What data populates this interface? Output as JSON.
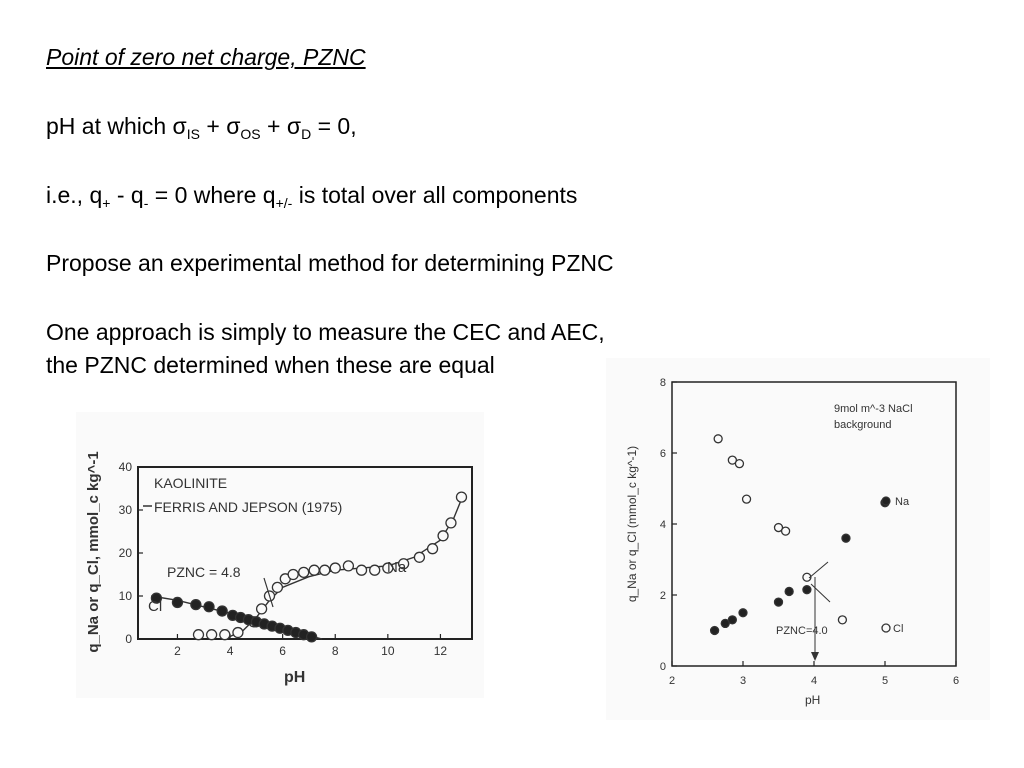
{
  "slide": {
    "title": "Point of zero net charge, PZNC",
    "line1": {
      "pre": "pH at which σ",
      "s1": "IS",
      "m1": " + σ",
      "s2": "OS",
      "m2": " + σ",
      "s3": "D",
      "post": " = 0,"
    },
    "line2": {
      "pre": "i.e., q",
      "s1": "+",
      "m1": " - q",
      "s2": "-",
      "m2": " = 0 where q",
      "s3": "+/-",
      "post": " is total over all components"
    },
    "line3": "Propose an experimental method for determining PZNC",
    "line4": "One approach is simply to measure the CEC and AEC,",
    "line5": "the PZNC determined when these are equal"
  },
  "chart_data": [
    {
      "type": "scatter",
      "title": "KAOLINITE",
      "subtitle": "FERRIS AND JEPSON (1975)",
      "xlabel": "pH",
      "ylabel": "q_Na or q_Cl, mmol_c kg^-1",
      "xlim": [
        0.5,
        13.2
      ],
      "ylim": [
        0,
        40
      ],
      "xticks": [
        "2",
        "4",
        "6",
        "8",
        "10",
        "12"
      ],
      "yticks": [
        "0",
        "10",
        "20",
        "30",
        "40"
      ],
      "annotation": "PZNC = 4.8",
      "series": [
        {
          "name": "Na",
          "marker": "open-circle",
          "x": [
            2.8,
            3.3,
            3.8,
            4.3,
            4.9,
            5.2,
            5.5,
            5.8,
            6.1,
            6.4,
            6.8,
            7.2,
            7.6,
            8.0,
            8.5,
            9.0,
            9.5,
            10.0,
            10.6,
            11.2,
            11.7,
            12.1,
            12.4,
            12.8
          ],
          "y": [
            1,
            1,
            1,
            1.5,
            4,
            7,
            10,
            12,
            14,
            15,
            15.5,
            16,
            16,
            16.5,
            17,
            16,
            16,
            16.5,
            17.5,
            19,
            21,
            24,
            27,
            33
          ]
        },
        {
          "name": "Cl",
          "marker": "filled-circle",
          "x": [
            1.2,
            2.0,
            2.7,
            3.2,
            3.7,
            4.1,
            4.4,
            4.7,
            5.0,
            5.3,
            5.6,
            5.9,
            6.2,
            6.5,
            6.8,
            7.1
          ],
          "y": [
            9.5,
            8.5,
            8,
            7.5,
            6.5,
            5.5,
            5,
            4.5,
            4,
            3.5,
            3,
            2.5,
            2,
            1.5,
            1,
            0.5
          ]
        }
      ],
      "curves": [
        {
          "x": [
            1,
            2,
            3,
            4,
            5,
            6,
            7,
            7.5
          ],
          "y": [
            10,
            9,
            7.5,
            6,
            4.5,
            2.5,
            0.8,
            0
          ]
        },
        {
          "x": [
            3.8,
            4.5,
            5,
            5.5,
            6,
            7,
            8,
            9,
            10,
            11,
            12,
            12.5,
            12.9
          ],
          "y": [
            0,
            2,
            5,
            9,
            12,
            14.5,
            16,
            16.5,
            17,
            19,
            23,
            28,
            34
          ]
        }
      ]
    },
    {
      "type": "scatter",
      "title": "9mol m^-3 NaCl",
      "subtitle": "background",
      "xlabel": "pH",
      "ylabel": "q_Na or q_Cl (mmol_c kg^-1)",
      "xlim": [
        2,
        6
      ],
      "ylim": [
        0,
        8
      ],
      "xticks": [
        "2",
        "3",
        "4",
        "5",
        "6"
      ],
      "yticks": [
        "0",
        "2",
        "4",
        "6",
        "8"
      ],
      "annotation": "PZNC=4.0",
      "series": [
        {
          "name": "Na",
          "marker": "filled-circle",
          "x": [
            2.6,
            2.75,
            2.85,
            3.0,
            3.5,
            3.65,
            3.9,
            4.45,
            5.0
          ],
          "y": [
            1.0,
            1.2,
            1.3,
            1.5,
            1.8,
            2.1,
            2.15,
            3.6,
            4.6
          ]
        },
        {
          "name": "Cl",
          "marker": "open-circle",
          "x": [
            2.65,
            2.85,
            2.95,
            3.05,
            3.5,
            3.6,
            3.9,
            4.4
          ],
          "y": [
            6.4,
            5.8,
            5.7,
            4.7,
            3.9,
            3.8,
            2.5,
            1.3
          ]
        }
      ],
      "legend": {
        "na_label": "Na",
        "cl_label": "Cl"
      }
    }
  ]
}
